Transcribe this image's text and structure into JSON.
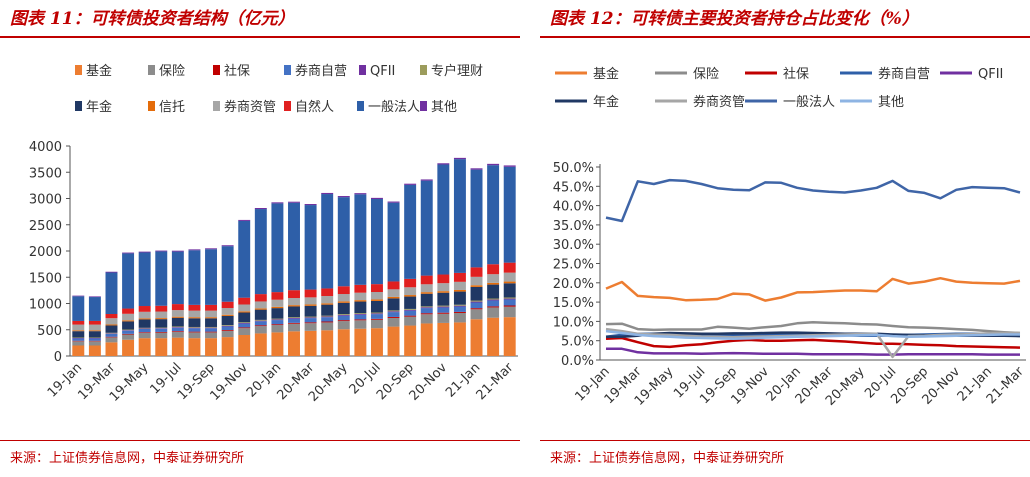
{
  "left": {
    "title": "图表 11：可转债投资者结构（亿元）",
    "source": "来源：上证债券信息网，中泰证券研究所",
    "chart_data": {
      "type": "bar",
      "stacked": true,
      "ylim": [
        0,
        4000
      ],
      "yticks": [
        0,
        500,
        1000,
        1500,
        2000,
        2500,
        3000,
        3500,
        4000
      ],
      "xtick_labels": [
        "19-Jan",
        "19-Mar",
        "19-May",
        "19-Jul",
        "19-Sep",
        "19-Nov",
        "20-Jan",
        "20-Mar",
        "20-May",
        "20-Jul",
        "20-Sep",
        "20-Nov",
        "21-Jan",
        "21-Mar"
      ],
      "categories": [
        "19-Jan",
        "19-Feb",
        "19-Mar",
        "19-Apr",
        "19-May",
        "19-Jun",
        "19-Jul",
        "19-Aug",
        "19-Sep",
        "19-Oct",
        "19-Nov",
        "19-Dec",
        "20-Jan",
        "20-Feb",
        "20-Mar",
        "20-Apr",
        "20-May",
        "20-Jun",
        "20-Jul",
        "20-Aug",
        "20-Sep",
        "20-Oct",
        "20-Nov",
        "20-Dec",
        "21-Jan",
        "21-Feb",
        "21-Mar"
      ],
      "series": [
        {
          "name": "基金",
          "color": "#ed7d31",
          "values": [
            200,
            200,
            260,
            310,
            340,
            340,
            350,
            340,
            340,
            360,
            400,
            430,
            450,
            470,
            480,
            490,
            510,
            520,
            530,
            560,
            580,
            620,
            630,
            640,
            700,
            730,
            740
          ]
        },
        {
          "name": "保险",
          "color": "#8c8c8c",
          "values": [
            80,
            80,
            95,
            100,
            100,
            105,
            110,
            110,
            110,
            120,
            130,
            140,
            140,
            145,
            145,
            150,
            155,
            160,
            160,
            165,
            170,
            175,
            175,
            180,
            190,
            195,
            200
          ]
        },
        {
          "name": "社保",
          "color": "#c00000",
          "values": [
            10,
            10,
            12,
            12,
            13,
            13,
            14,
            14,
            14,
            15,
            15,
            16,
            16,
            16,
            17,
            17,
            18,
            18,
            18,
            19,
            19,
            20,
            20,
            20,
            21,
            21,
            22
          ]
        },
        {
          "name": "券商自营",
          "color": "#4472c4",
          "values": [
            45,
            45,
            55,
            60,
            62,
            62,
            65,
            65,
            65,
            68,
            72,
            75,
            78,
            80,
            80,
            82,
            85,
            88,
            90,
            92,
            95,
            98,
            100,
            102,
            108,
            112,
            115
          ]
        },
        {
          "name": "QFII",
          "color": "#7030a0",
          "values": [
            8,
            8,
            9,
            10,
            10,
            10,
            11,
            11,
            11,
            12,
            12,
            12,
            13,
            13,
            13,
            13,
            14,
            14,
            14,
            15,
            15,
            15,
            16,
            16,
            17,
            17,
            17
          ]
        },
        {
          "name": "专户理财",
          "color": "#9c9c5c",
          "values": [
            10,
            10,
            11,
            12,
            12,
            12,
            13,
            13,
            13,
            14,
            14,
            15,
            15,
            15,
            16,
            16,
            16,
            17,
            17,
            18,
            18,
            18,
            19,
            19,
            20,
            20,
            21
          ]
        },
        {
          "name": "年金",
          "color": "#203864",
          "values": [
            120,
            120,
            140,
            155,
            160,
            160,
            165,
            165,
            165,
            175,
            185,
            195,
            200,
            205,
            205,
            210,
            215,
            220,
            220,
            228,
            235,
            240,
            245,
            250,
            260,
            265,
            270
          ]
        },
        {
          "name": "信托",
          "color": "#e46c0a",
          "values": [
            15,
            15,
            18,
            20,
            20,
            20,
            21,
            21,
            21,
            22,
            23,
            24,
            25,
            25,
            26,
            26,
            27,
            27,
            28,
            28,
            29,
            30,
            30,
            31,
            32,
            33,
            33
          ]
        },
        {
          "name": "券商资管",
          "color": "#a6a6a6",
          "values": [
            110,
            110,
            120,
            125,
            125,
            125,
            125,
            125,
            125,
            128,
            130,
            132,
            135,
            135,
            135,
            138,
            140,
            142,
            142,
            145,
            148,
            150,
            152,
            155,
            160,
            165,
            170
          ]
        },
        {
          "name": "自然人",
          "color": "#e02020",
          "values": [
            70,
            70,
            80,
            100,
            110,
            110,
            115,
            110,
            110,
            120,
            130,
            140,
            145,
            150,
            148,
            145,
            148,
            150,
            150,
            150,
            160,
            165,
            165,
            170,
            180,
            190,
            190
          ]
        },
        {
          "name": "一般法人",
          "color": "#2e5fa8",
          "values": [
            470,
            455,
            790,
            1050,
            1020,
            1035,
            1000,
            1040,
            1060,
            1058,
            1462,
            1620,
            1690,
            1665,
            1610,
            1798,
            1698,
            1724,
            1621,
            1500,
            1790,
            1809,
            2095,
            2167,
            1862,
            1887,
            1826
          ]
        },
        {
          "name": "其他",
          "color": "#7030a0",
          "values": [
            12,
            12,
            15,
            16,
            16,
            16,
            17,
            17,
            17,
            18,
            19,
            20,
            20,
            20,
            20,
            21,
            21,
            22,
            22,
            22,
            23,
            23,
            24,
            24,
            25,
            25,
            26
          ]
        }
      ]
    }
  },
  "right": {
    "title": "图表 12：可转债主要投资者持仓占比变化（%）",
    "source": "来源：上证债券信息网，中泰证券研究所",
    "chart_data": {
      "type": "line",
      "ylim": [
        0,
        50
      ],
      "ytick_labels": [
        "0.0%",
        "5.0%",
        "10.0%",
        "15.0%",
        "20.0%",
        "25.0%",
        "30.0%",
        "35.0%",
        "40.0%",
        "45.0%",
        "50.0%"
      ],
      "xtick_labels": [
        "19-Jan",
        "19-Mar",
        "19-May",
        "19-Jul",
        "19-Sep",
        "19-Nov",
        "20-Jan",
        "20-Mar",
        "20-May",
        "20-Jul",
        "20-Sep",
        "20-Nov",
        "21-Jan",
        "21-Mar"
      ],
      "series": [
        {
          "name": "基金",
          "color": "#ed7d31",
          "values": [
            18.5,
            20.2,
            16.6,
            16.3,
            16.1,
            15.5,
            15.6,
            15.8,
            17.2,
            17.0,
            15.4,
            16.2,
            17.5,
            17.6,
            17.8,
            18.0,
            18.0,
            17.8,
            21.0,
            19.8,
            20.3,
            21.2,
            20.3,
            20.0,
            19.9,
            19.8,
            20.5
          ]
        },
        {
          "name": "保险",
          "color": "#8c8c8c",
          "values": [
            9.3,
            9.4,
            8.0,
            7.8,
            7.9,
            7.9,
            7.9,
            8.6,
            8.4,
            8.1,
            8.5,
            8.8,
            9.5,
            9.8,
            9.6,
            9.5,
            9.3,
            9.2,
            8.8,
            8.5,
            8.4,
            8.2,
            8.0,
            7.8,
            7.5,
            7.2,
            7.0
          ]
        },
        {
          "name": "社保",
          "color": "#c00000",
          "values": [
            5.5,
            5.7,
            4.6,
            3.6,
            3.4,
            3.8,
            4.1,
            4.6,
            5.0,
            5.2,
            5.0,
            5.0,
            5.1,
            5.2,
            5.0,
            4.8,
            4.5,
            4.2,
            4.2,
            4.1,
            3.9,
            3.8,
            3.6,
            3.5,
            3.4,
            3.3,
            3.2
          ]
        },
        {
          "name": "券商自营",
          "color": "#2e5fa8",
          "values": [
            6.0,
            6.5,
            6.8,
            6.8,
            6.7,
            6.5,
            6.4,
            6.4,
            6.4,
            6.5,
            6.6,
            6.7,
            6.7,
            6.6,
            6.5,
            6.4,
            6.3,
            6.3,
            6.4,
            6.5,
            6.6,
            6.7,
            6.8,
            6.8,
            6.8,
            6.7,
            6.6
          ]
        },
        {
          "name": "QFII",
          "color": "#7030a0",
          "values": [
            2.9,
            2.9,
            2.0,
            1.7,
            1.7,
            1.7,
            1.6,
            1.7,
            1.8,
            1.7,
            1.6,
            1.6,
            1.6,
            1.5,
            1.5,
            1.5,
            1.5,
            1.4,
            1.4,
            1.5,
            1.5,
            1.5,
            1.5,
            1.5,
            1.4,
            1.4,
            1.4
          ]
        },
        {
          "name": "年金",
          "color": "#203864",
          "values": [
            6.0,
            6.0,
            6.3,
            6.8,
            7.0,
            6.9,
            6.8,
            6.8,
            6.9,
            6.9,
            7.0,
            7.1,
            7.1,
            7.0,
            6.9,
            6.8,
            6.8,
            6.8,
            6.6,
            6.5,
            6.4,
            6.4,
            6.3,
            6.3,
            6.3,
            6.3,
            6.2
          ]
        },
        {
          "name": "券商资管",
          "color": "#a6a6a6",
          "values": [
            8.0,
            7.5,
            6.8,
            6.6,
            6.5,
            6.3,
            6.1,
            6.0,
            5.9,
            6.0,
            6.1,
            6.2,
            6.3,
            6.4,
            6.5,
            6.6,
            6.7,
            6.8,
            0.8,
            6.2,
            6.3,
            6.5,
            6.6,
            6.7,
            6.9,
            7.0,
            7.0
          ]
        },
        {
          "name": "一般法人",
          "color": "#3f65a7",
          "values": [
            36.9,
            36.0,
            46.3,
            45.6,
            46.6,
            46.4,
            45.6,
            44.5,
            44.1,
            44.0,
            46.0,
            45.9,
            44.6,
            43.9,
            43.6,
            43.4,
            43.9,
            44.6,
            46.4,
            43.8,
            43.3,
            41.9,
            44.1,
            44.8,
            44.6,
            44.5,
            43.4
          ]
        },
        {
          "name": "其他",
          "color": "#8eb4e3",
          "values": [
            7.5,
            7.0,
            6.5,
            6.2,
            6.0,
            5.8,
            5.7,
            5.6,
            5.5,
            5.6,
            5.8,
            5.9,
            6.0,
            6.1,
            6.2,
            6.3,
            6.4,
            6.5,
            6.2,
            6.0,
            6.1,
            6.2,
            6.3,
            6.4,
            6.5,
            6.6,
            6.6
          ]
        }
      ]
    }
  }
}
